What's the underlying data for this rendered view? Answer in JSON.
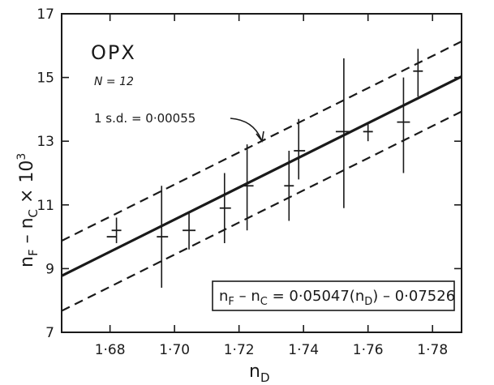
{
  "chart_data": {
    "type": "scatter",
    "x_range": [
      1.665,
      1.789
    ],
    "y_range": [
      7,
      17
    ],
    "x_ticks": [
      {
        "value": 1.68,
        "label": "1·68"
      },
      {
        "value": 1.7,
        "label": "1·70"
      },
      {
        "value": 1.72,
        "label": "1·72"
      },
      {
        "value": 1.74,
        "label": "1·74"
      },
      {
        "value": 1.76,
        "label": "1·76"
      },
      {
        "value": 1.78,
        "label": "1·78"
      }
    ],
    "y_ticks": [
      {
        "value": 7,
        "label": "7"
      },
      {
        "value": 9,
        "label": "9"
      },
      {
        "value": 11,
        "label": "11"
      },
      {
        "value": 13,
        "label": "13"
      },
      {
        "value": 15,
        "label": "15"
      },
      {
        "value": 17,
        "label": "17"
      }
    ],
    "x_label": {
      "base": "n",
      "sub": "D"
    },
    "y_label": {
      "n1": "n",
      "s1": "F",
      "mid": " – n",
      "s2": "C",
      "tail": " × 10",
      "sup": "3"
    },
    "group_label": "OPX",
    "n_label": "N = 12",
    "sd_label": "1 s.d. = 0·00055",
    "equation": {
      "p1": "n",
      "s1": "F",
      "p2": " – n",
      "s2": "C",
      "p3": " = 0·05047(n",
      "s3": "D",
      "p4": ") – 0·07526"
    },
    "regression": {
      "slope": 50.47,
      "intercept": -75.26
    },
    "sd_offset": 1.1,
    "points": [
      {
        "x": 1.6805,
        "y": 10.0,
        "ylo": 10.0,
        "yhi": 10.0,
        "xlo": 1.679,
        "xhi": 1.682
      },
      {
        "x": 1.682,
        "y": 10.2,
        "ylo": 9.8,
        "yhi": 10.6,
        "xlo": 1.6805,
        "xhi": 1.6835
      },
      {
        "x": 1.696,
        "y": 10.0,
        "ylo": 8.4,
        "yhi": 11.6,
        "xlo": 1.6945,
        "xhi": 1.698
      },
      {
        "x": 1.7045,
        "y": 10.2,
        "ylo": 9.6,
        "yhi": 10.8,
        "xlo": 1.7025,
        "xhi": 1.7065
      },
      {
        "x": 1.7155,
        "y": 10.9,
        "ylo": 9.8,
        "yhi": 12.0,
        "xlo": 1.714,
        "xhi": 1.7175
      },
      {
        "x": 1.7225,
        "y": 11.6,
        "ylo": 10.2,
        "yhi": 12.9,
        "xlo": 1.7205,
        "xhi": 1.7245
      },
      {
        "x": 1.7355,
        "y": 11.6,
        "ylo": 10.5,
        "yhi": 12.7,
        "xlo": 1.734,
        "xhi": 1.737
      },
      {
        "x": 1.7385,
        "y": 12.7,
        "ylo": 11.8,
        "yhi": 13.7,
        "xlo": 1.737,
        "xhi": 1.7405
      },
      {
        "x": 1.7525,
        "y": 13.3,
        "ylo": 10.9,
        "yhi": 15.6,
        "xlo": 1.75,
        "xhi": 1.755
      },
      {
        "x": 1.76,
        "y": 13.3,
        "ylo": 13.0,
        "yhi": 13.6,
        "xlo": 1.7585,
        "xhi": 1.7615
      },
      {
        "x": 1.771,
        "y": 13.6,
        "ylo": 12.0,
        "yhi": 15.0,
        "xlo": 1.769,
        "xhi": 1.773
      },
      {
        "x": 1.7755,
        "y": 15.2,
        "ylo": 14.4,
        "yhi": 15.9,
        "xlo": 1.774,
        "xhi": 1.777
      }
    ]
  }
}
